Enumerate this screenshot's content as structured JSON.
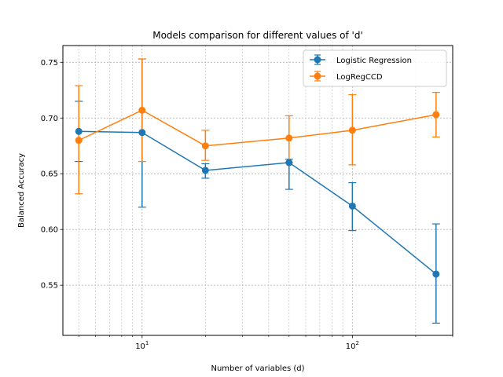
{
  "chart_data": {
    "type": "line",
    "title": "Models comparison for different values of 'd'",
    "xlabel": "Number of variables (d)",
    "ylabel": "Balanced Accuracy",
    "xscale": "log",
    "xlim": [
      4.2,
      300
    ],
    "ylim": [
      0.505,
      0.765
    ],
    "x_tick_labels": [
      {
        "value": 10,
        "base": "10",
        "exp": "1"
      },
      {
        "value": 100,
        "base": "10",
        "exp": "2"
      }
    ],
    "y_ticks": [
      0.55,
      0.6,
      0.65,
      0.7,
      0.75
    ],
    "y_tick_labels": [
      "0.55",
      "0.60",
      "0.65",
      "0.70",
      "0.75"
    ],
    "grid": "both (major and minor), dashed",
    "legend": "top-right",
    "x": [
      5,
      10,
      20,
      50,
      100,
      250
    ],
    "series": [
      {
        "name": "Logistic Regression",
        "color": "#1f77b4",
        "values": [
          0.688,
          0.687,
          0.653,
          0.66,
          0.621,
          0.56
        ],
        "err_low": [
          0.661,
          0.62,
          0.646,
          0.636,
          0.599,
          0.516
        ],
        "err_high": [
          0.715,
          0.753,
          0.659,
          0.663,
          0.642,
          0.605
        ]
      },
      {
        "name": "LogRegCCD",
        "color": "#ff7f0e",
        "values": [
          0.68,
          0.707,
          0.675,
          0.682,
          0.689,
          0.703
        ],
        "err_low": [
          0.632,
          0.661,
          0.662,
          0.66,
          0.658,
          0.683
        ],
        "err_high": [
          0.729,
          0.753,
          0.689,
          0.702,
          0.721,
          0.723
        ]
      }
    ]
  }
}
